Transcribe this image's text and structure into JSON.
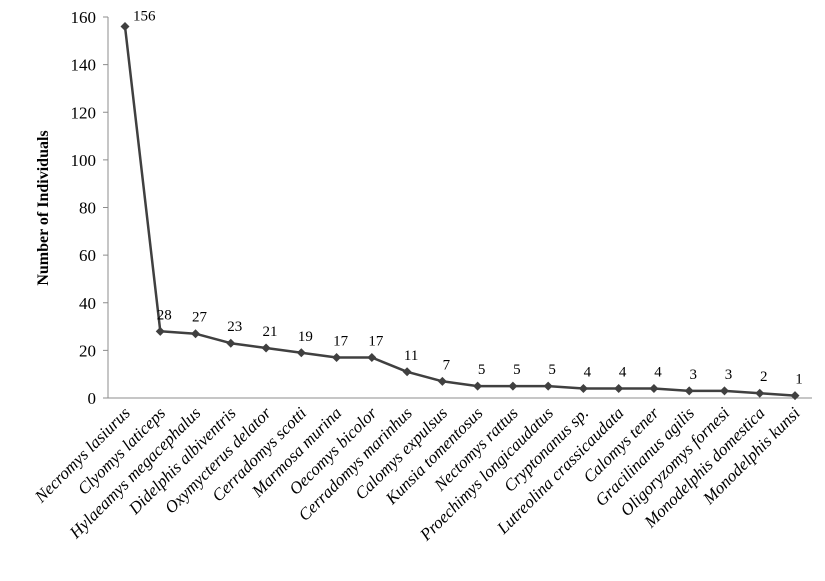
{
  "chart_data": {
    "type": "line",
    "title": "",
    "xlabel": "",
    "ylabel": "Number of Individuals",
    "ylim": [
      0,
      160
    ],
    "yticks": [
      0,
      20,
      40,
      60,
      80,
      100,
      120,
      140,
      160
    ],
    "grid": false,
    "legend": "none",
    "marker": "diamond",
    "line_color": "#404040",
    "categories": [
      "Necromys lasiurus",
      "Clyomys laticeps",
      "Hylaeamys megacephalus",
      "Didelphis albiventris",
      "Oxymycterus delator",
      "Cerradomys scotti",
      "Marmosa murina",
      "Oecomys bicolor",
      "Cerradomys marinhus",
      "Calomys expulsus",
      "Kunsia tomentosus",
      "Nectomys rattus",
      "Proechimys longicaudatus",
      "Cryptonanus sp.",
      "Lutreolina crassicaudata",
      "Calomys tener",
      "Gracilinanus agilis",
      "Oligoryzomys fornesi",
      "Monodelphis domestica",
      "Monodelphis kunsi"
    ],
    "values": [
      156,
      28,
      27,
      23,
      21,
      19,
      17,
      17,
      11,
      7,
      5,
      5,
      5,
      4,
      4,
      4,
      3,
      3,
      2,
      1
    ],
    "data_labels": [
      "156",
      "28",
      "27",
      "23",
      "21",
      "19",
      "17",
      "17",
      "11",
      "7",
      "5",
      "5",
      "5",
      "4",
      "4",
      "4",
      "3",
      "3",
      "2",
      "1"
    ]
  }
}
